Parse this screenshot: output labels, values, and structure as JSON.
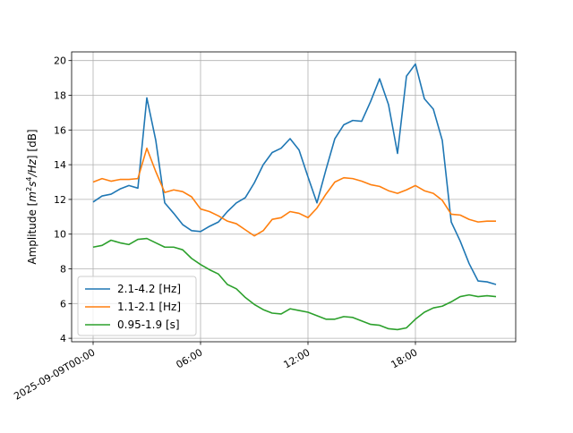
{
  "chart_data": {
    "type": "line",
    "title": "",
    "xlabel": "",
    "ylabel": "Amplitude [m²s⁴/Hz] [dB]",
    "ylabel_parts": {
      "prefix": "Amplitude [",
      "base1": "m",
      "exp1": "2",
      "base2": "s",
      "exp2": "4",
      "tail": "/Hz",
      "suffix": "] [dB]"
    },
    "x_hours_range": [
      -1.2,
      23.6
    ],
    "ylim": [
      3.8,
      20.5
    ],
    "grid": true,
    "legend_position": "lower-left",
    "x_ticks": [
      {
        "hour": 0,
        "label": "2025-09-09T00:00"
      },
      {
        "hour": 6,
        "label": "06:00"
      },
      {
        "hour": 12,
        "label": "12:00"
      },
      {
        "hour": 18,
        "label": "18:00"
      }
    ],
    "y_ticks": [
      4,
      6,
      8,
      10,
      12,
      14,
      16,
      18,
      20
    ],
    "x_hours": [
      0,
      0.5,
      1,
      1.5,
      2,
      2.5,
      3,
      3.5,
      4,
      4.5,
      5,
      5.5,
      6,
      6.5,
      7,
      7.5,
      8,
      8.5,
      9,
      9.5,
      10,
      10.5,
      11,
      11.5,
      12,
      12.5,
      13,
      13.5,
      14,
      14.5,
      15,
      15.5,
      16,
      16.5,
      17,
      17.5,
      18,
      18.5,
      19,
      19.5,
      20,
      20.5,
      21,
      21.5,
      22,
      22.5
    ],
    "series": [
      {
        "name": "2.1-4.2 [Hz]",
        "color": "#1f77b4",
        "values": [
          11.85,
          12.2,
          12.3,
          12.6,
          12.8,
          12.65,
          17.85,
          15.4,
          11.8,
          11.2,
          10.55,
          10.2,
          10.15,
          10.45,
          10.7,
          11.3,
          11.8,
          12.1,
          12.95,
          14.0,
          14.7,
          14.95,
          15.5,
          14.85,
          13.3,
          11.8,
          13.7,
          15.5,
          16.3,
          16.55,
          16.5,
          17.65,
          18.95,
          17.45,
          14.65,
          19.1,
          19.8,
          17.8,
          17.2,
          15.4,
          10.7,
          9.6,
          8.3,
          7.3,
          7.25,
          7.1
        ]
      },
      {
        "name": "1.1-2.1 [Hz]",
        "color": "#ff7f0e",
        "values": [
          13.0,
          13.2,
          13.05,
          13.15,
          13.15,
          13.2,
          14.95,
          13.6,
          12.4,
          12.55,
          12.45,
          12.15,
          11.45,
          11.3,
          11.05,
          10.75,
          10.6,
          10.25,
          9.9,
          10.2,
          10.85,
          10.95,
          11.3,
          11.2,
          10.95,
          11.5,
          12.3,
          13.0,
          13.25,
          13.2,
          13.05,
          12.85,
          12.75,
          12.5,
          12.35,
          12.55,
          12.8,
          12.5,
          12.35,
          11.95,
          11.15,
          11.1,
          10.85,
          10.7,
          10.75,
          10.75
        ]
      },
      {
        "name": "0.95-1.9 [s]",
        "color": "#2ca02c",
        "values": [
          9.25,
          9.35,
          9.65,
          9.5,
          9.4,
          9.7,
          9.75,
          9.5,
          9.25,
          9.25,
          9.1,
          8.6,
          8.25,
          7.95,
          7.7,
          7.1,
          6.85,
          6.35,
          5.95,
          5.65,
          5.45,
          5.4,
          5.7,
          5.6,
          5.5,
          5.3,
          5.1,
          5.1,
          5.25,
          5.2,
          5.0,
          4.8,
          4.75,
          4.55,
          4.5,
          4.6,
          5.1,
          5.5,
          5.75,
          5.85,
          6.1,
          6.4,
          6.5,
          6.4,
          6.45,
          6.4
        ]
      }
    ]
  }
}
